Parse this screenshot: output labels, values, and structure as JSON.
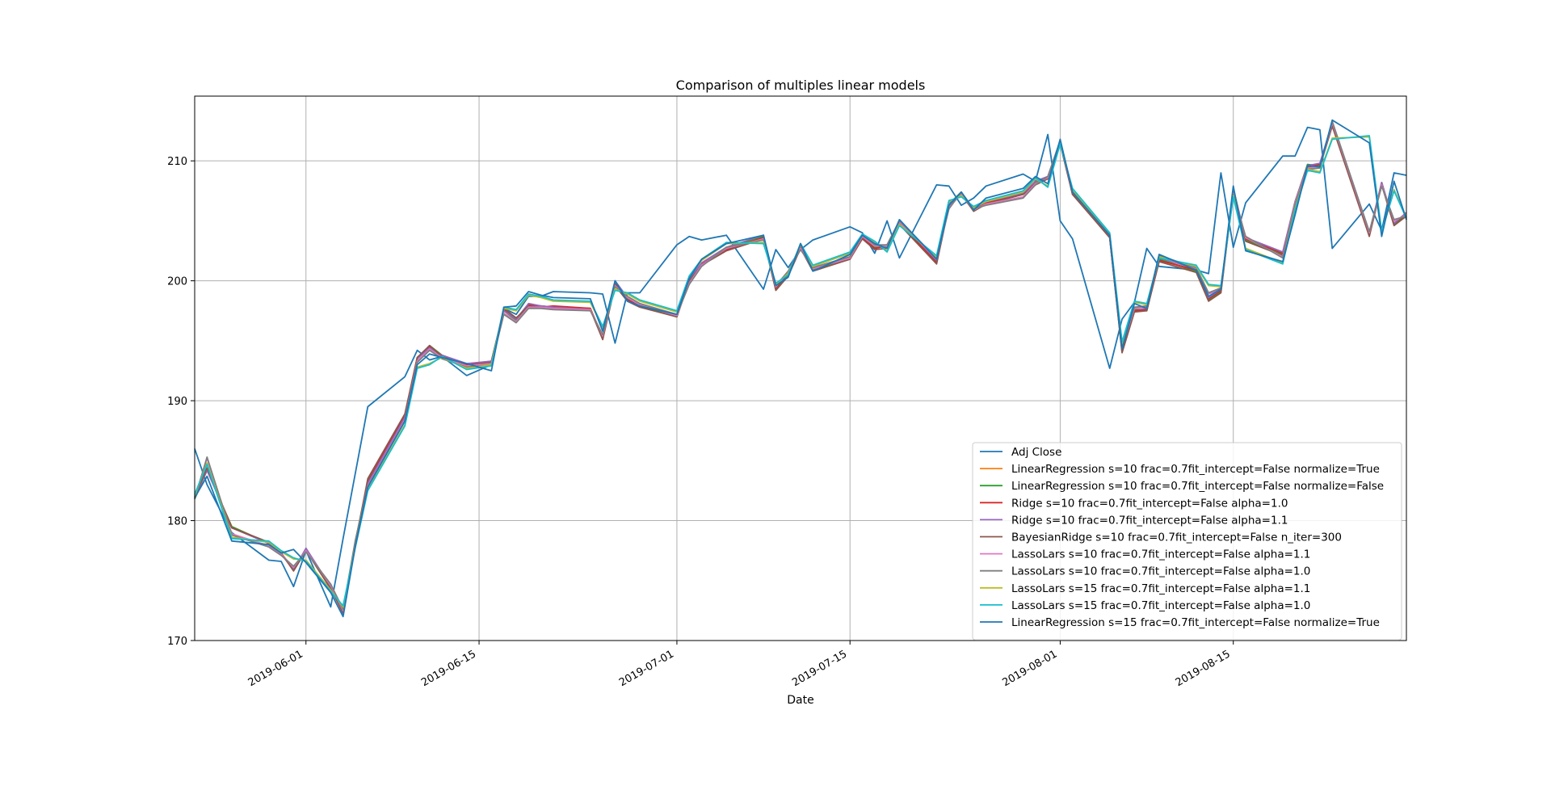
{
  "chart_data": {
    "type": "line",
    "title": "Comparison of multiples linear models",
    "xlabel": "Date",
    "ylabel": "",
    "x_scale": "date",
    "xlim": [
      "2019-05-23",
      "2019-08-29"
    ],
    "ylim": [
      170,
      215.4
    ],
    "xticks": [
      "2019-06-01",
      "2019-06-15",
      "2019-07-01",
      "2019-07-15",
      "2019-08-01",
      "2019-08-15"
    ],
    "yticks": [
      170,
      180,
      190,
      200,
      210
    ],
    "grid": true,
    "legend_position": "lower right",
    "x": [
      "2019-05-23",
      "2019-05-24",
      "2019-05-26",
      "2019-05-29",
      "2019-05-30",
      "2019-05-31",
      "2019-06-01",
      "2019-06-03",
      "2019-06-04",
      "2019-06-05",
      "2019-06-06",
      "2019-06-09",
      "2019-06-10",
      "2019-06-11",
      "2019-06-12",
      "2019-06-14",
      "2019-06-16",
      "2019-06-17",
      "2019-06-18",
      "2019-06-19",
      "2019-06-20",
      "2019-06-21",
      "2019-06-24",
      "2019-06-25",
      "2019-06-26",
      "2019-06-27",
      "2019-06-28",
      "2019-07-01",
      "2019-07-02",
      "2019-07-03",
      "2019-07-05",
      "2019-07-08",
      "2019-07-09",
      "2019-07-10",
      "2019-07-11",
      "2019-07-12",
      "2019-07-15",
      "2019-07-16",
      "2019-07-17",
      "2019-07-18",
      "2019-07-19",
      "2019-07-22",
      "2019-07-23",
      "2019-07-24",
      "2019-07-25",
      "2019-07-26",
      "2019-07-29",
      "2019-07-30",
      "2019-07-31",
      "2019-08-01",
      "2019-08-02",
      "2019-08-05",
      "2019-08-06",
      "2019-08-07",
      "2019-08-08",
      "2019-08-09",
      "2019-08-12",
      "2019-08-13",
      "2019-08-14",
      "2019-08-15",
      "2019-08-16",
      "2019-08-19",
      "2019-08-20",
      "2019-08-21",
      "2019-08-22",
      "2019-08-23",
      "2019-08-26",
      "2019-08-27",
      "2019-08-28",
      "2019-08-29"
    ],
    "series": [
      {
        "name": "Adj Close",
        "color": "#1f77b4",
        "values": [
          186,
          183,
          179,
          176.7,
          176.6,
          174.5,
          177.5,
          172.8,
          178.5,
          184,
          189.5,
          192,
          194.2,
          193.4,
          193.7,
          192.1,
          193,
          197.7,
          197.2,
          198.7,
          198.7,
          199.1,
          199,
          198.9,
          194.8,
          199,
          199,
          203,
          203.7,
          203.4,
          203.8,
          199.3,
          202.6,
          201.1,
          202.6,
          203.4,
          204.5,
          204,
          202.3,
          205,
          201.9,
          208,
          207.9,
          206.3,
          206.9,
          207.9,
          208.9,
          208.3,
          212.2,
          205,
          203.5,
          192.7,
          196.8,
          198.2,
          202.7,
          201.2,
          200.9,
          200.6,
          209,
          202.8,
          206.5,
          210.4,
          210.4,
          212.8,
          212.6,
          202.7,
          206.4,
          204.2,
          209,
          208.8
        ]
      },
      {
        "name": "LinearRegression s=10 frac=0.7fit_intercept=False normalize=True",
        "color": "#ff7f0e",
        "values": [
          181.8,
          184.2,
          179.5,
          178.1,
          177.2,
          176,
          177.6,
          174.5,
          172.3,
          178.3,
          183.3,
          188.7,
          193.5,
          194.6,
          193.8,
          193,
          193.3,
          197.5,
          196.7,
          198,
          197.9,
          197.8,
          197.7,
          195.2,
          199.8,
          198.5,
          197.9,
          197,
          200,
          201.3,
          202.7,
          203.7,
          199.3,
          200.5,
          202.9,
          200.9,
          201.8,
          203.7,
          202.8,
          202.8,
          204.9,
          201.5,
          206.4,
          207.4,
          205.8,
          206.4,
          207.4,
          208.2,
          208.5,
          211.6,
          207.2,
          203.7,
          194.1,
          197.6,
          197.5,
          201.8,
          200.8,
          198.4,
          199.1,
          207.7,
          203.4,
          202.2,
          206.6,
          209.7,
          209.6,
          213.1,
          203.8,
          208.2,
          204.7,
          205.5
        ]
      },
      {
        "name": "LinearRegression s=10 frac=0.7fit_intercept=False normalize=False",
        "color": "#2ca02c",
        "values": [
          181.8,
          184.2,
          179.5,
          178.1,
          177.2,
          176,
          177.6,
          174.5,
          172.3,
          178.3,
          183.3,
          188.7,
          193.5,
          194.6,
          193.8,
          193,
          193.3,
          197.5,
          196.7,
          198,
          197.9,
          197.8,
          197.7,
          195.2,
          199.8,
          198.5,
          197.9,
          197,
          200,
          201.3,
          202.7,
          203.7,
          199.3,
          200.5,
          202.9,
          200.9,
          201.8,
          203.7,
          202.8,
          202.8,
          204.9,
          201.5,
          206.4,
          207.4,
          205.8,
          206.4,
          207.4,
          208.2,
          208.5,
          211.6,
          207.2,
          203.7,
          194.1,
          197.6,
          197.5,
          201.8,
          200.8,
          198.4,
          199.1,
          207.7,
          203.4,
          202.2,
          206.6,
          209.7,
          209.6,
          213.1,
          203.8,
          208.2,
          204.7,
          205.5
        ]
      },
      {
        "name": "Ridge s=10 frac=0.7fit_intercept=False alpha=1.0",
        "color": "#d62728",
        "values": [
          181.9,
          184.3,
          179.4,
          178.1,
          177.3,
          175.9,
          177.6,
          174.4,
          172.3,
          178.2,
          183.2,
          188.8,
          193.6,
          194.5,
          193.7,
          193,
          193.2,
          197.6,
          196.8,
          198,
          197.8,
          197.9,
          197.7,
          195.3,
          199.7,
          198.4,
          198,
          197.1,
          200.1,
          201.4,
          202.6,
          203.6,
          199.4,
          200.6,
          202.8,
          201,
          201.9,
          203.6,
          202.7,
          202.9,
          204.8,
          201.6,
          206.3,
          207.3,
          205.9,
          206.5,
          207.3,
          208.1,
          208.6,
          211.5,
          207.3,
          203.6,
          194.2,
          197.5,
          197.6,
          201.7,
          200.9,
          198.5,
          199.2,
          207.6,
          203.5,
          202.3,
          206.5,
          209.6,
          209.7,
          213,
          203.9,
          208.1,
          204.8,
          205.6
        ]
      },
      {
        "name": "Ridge s=10 frac=0.7fit_intercept=False alpha=1.1",
        "color": "#9467bd",
        "values": [
          181.9,
          184.2,
          179.4,
          178.1,
          177.2,
          175.9,
          177.7,
          174.5,
          172.2,
          178.3,
          183.1,
          188.6,
          193.5,
          194.4,
          193.8,
          193.1,
          193.3,
          197.5,
          196.8,
          198.1,
          197.9,
          197.8,
          197.6,
          195.3,
          200,
          198.6,
          198,
          197.2,
          200.1,
          201.5,
          202.8,
          203.8,
          199.5,
          200.7,
          203,
          201.1,
          202,
          203.7,
          202.9,
          203,
          205,
          201.7,
          206.4,
          207.3,
          206,
          206.6,
          207.3,
          208.3,
          208.7,
          211.5,
          207.4,
          203.8,
          194.3,
          197.7,
          197.7,
          201.9,
          201,
          198.6,
          199.3,
          207.5,
          203.6,
          202.4,
          206.6,
          209.6,
          209.8,
          213.2,
          204,
          208.2,
          204.8,
          205.7
        ]
      },
      {
        "name": "BayesianRidge s=10 frac=0.7fit_intercept=False n_iter=300",
        "color": "#8c564b",
        "values": [
          182,
          184.4,
          179.4,
          178.2,
          177.3,
          175.8,
          177.5,
          174.3,
          172.3,
          178.1,
          183.5,
          188.9,
          193.6,
          194.6,
          193.7,
          192.9,
          193.2,
          197.7,
          196.9,
          197.9,
          197.8,
          197.7,
          197.6,
          195.1,
          199.6,
          198.3,
          197.8,
          197,
          200,
          201.3,
          202.5,
          203.5,
          199.2,
          200.4,
          202.7,
          200.8,
          201.8,
          203.5,
          202.6,
          202.7,
          204.7,
          201.4,
          206.2,
          207.2,
          205.8,
          206.4,
          207.2,
          208,
          208.5,
          211.4,
          207.2,
          203.6,
          194,
          197.4,
          197.5,
          201.6,
          200.7,
          198.3,
          199,
          207.4,
          203.3,
          202.1,
          206.4,
          209.5,
          209.5,
          212.9,
          203.7,
          208,
          204.6,
          205.4
        ]
      },
      {
        "name": "LassoLars s=10 frac=0.7fit_intercept=False alpha=1.1",
        "color": "#e377c2",
        "values": [
          181.9,
          185.2,
          178.9,
          177.9,
          177.2,
          176.1,
          177.5,
          174.6,
          172.5,
          178.3,
          182.9,
          188.4,
          193.3,
          194.3,
          193.6,
          192.9,
          193.1,
          197.3,
          196.6,
          197.8,
          197.8,
          197.7,
          197.6,
          195.4,
          199.6,
          198.6,
          198,
          197.1,
          199.8,
          201.3,
          202.7,
          203.5,
          199.5,
          200.7,
          202.7,
          201,
          201.9,
          203.7,
          202.9,
          202.9,
          204.9,
          201.8,
          206.1,
          207.3,
          205.9,
          206.4,
          207,
          208.1,
          208.6,
          211.6,
          207.4,
          203.8,
          194.5,
          197.7,
          197.8,
          202,
          201,
          198.9,
          199.3,
          207.3,
          203.6,
          202,
          206.5,
          209.4,
          209.5,
          213.2,
          204,
          208,
          205,
          205.5
        ]
      },
      {
        "name": "LassoLars s=10 frac=0.7fit_intercept=False alpha=1.0",
        "color": "#7f7f7f",
        "values": [
          181.8,
          185.3,
          178.8,
          177.8,
          177.1,
          176.2,
          177.4,
          174.7,
          172.6,
          178.4,
          182.8,
          188.3,
          193.2,
          194.2,
          193.5,
          192.8,
          193,
          197.2,
          196.5,
          197.7,
          197.7,
          197.6,
          197.5,
          195.5,
          199.5,
          198.7,
          198.1,
          197.2,
          199.7,
          201.2,
          202.8,
          203.4,
          199.6,
          200.8,
          202.6,
          201.1,
          202,
          203.8,
          203,
          203,
          205,
          201.9,
          206,
          207.4,
          206,
          206.3,
          206.9,
          208,
          208.7,
          211.7,
          207.5,
          203.9,
          194.6,
          197.8,
          197.9,
          202.1,
          201.1,
          199,
          199.4,
          207.2,
          203.7,
          201.9,
          206.4,
          209.3,
          209.4,
          213.3,
          204.1,
          207.9,
          205.1,
          205.4
        ]
      },
      {
        "name": "LassoLars s=15 frac=0.7fit_intercept=False alpha=1.1",
        "color": "#bcbd22",
        "values": [
          182.1,
          184.8,
          178.6,
          178.2,
          177.4,
          176.8,
          176.7,
          174.2,
          172.8,
          177.9,
          182.6,
          188,
          192.8,
          193.1,
          193.6,
          192.7,
          193,
          197.7,
          197.5,
          198.8,
          198.6,
          198.3,
          198.2,
          196.1,
          199.3,
          198.9,
          198.3,
          197.4,
          200.3,
          201.7,
          203.1,
          203.2,
          199.7,
          200.6,
          203,
          201.2,
          202.3,
          203.8,
          203.2,
          202.5,
          204.7,
          202,
          206.6,
          207.1,
          206.1,
          206.6,
          207.4,
          208.5,
          207.9,
          211.5,
          207.6,
          203.9,
          194.8,
          198.2,
          198,
          202,
          201.2,
          199.6,
          199.5,
          207.1,
          202.7,
          201.5,
          206,
          209.3,
          209.1,
          211.9,
          212,
          204,
          207.6,
          205.3
        ]
      },
      {
        "name": "LassoLars s=15 frac=0.7fit_intercept=False alpha=1.0",
        "color": "#17becf",
        "values": [
          182.2,
          184.7,
          178.5,
          178.3,
          177.5,
          176.9,
          176.6,
          174.1,
          172.9,
          177.8,
          182.5,
          187.9,
          192.7,
          193,
          193.7,
          192.6,
          192.9,
          197.8,
          197.6,
          198.9,
          198.7,
          198.4,
          198.3,
          196.2,
          199.2,
          199,
          198.4,
          197.5,
          200.4,
          201.8,
          203.2,
          203.1,
          199.8,
          200.5,
          203.1,
          201.3,
          202.4,
          203.9,
          203.3,
          202.4,
          204.6,
          202.1,
          206.7,
          207,
          206.2,
          206.7,
          207.5,
          208.6,
          207.8,
          211.4,
          207.7,
          204,
          194.9,
          198.3,
          198.1,
          201.9,
          201.3,
          199.7,
          199.6,
          207,
          202.6,
          201.4,
          205.9,
          209.2,
          209,
          211.8,
          212.1,
          204.1,
          207.5,
          205.2
        ]
      },
      {
        "name": "LinearRegression s=15 frac=0.7fit_intercept=False normalize=True",
        "color": "#1f77b4",
        "values": [
          181.9,
          183.7,
          178.3,
          178,
          177.3,
          177.6,
          176.5,
          174,
          172,
          177.9,
          182.8,
          188.3,
          193,
          193.9,
          193.6,
          193.1,
          192.5,
          197.8,
          197.9,
          199.1,
          198.8,
          198.6,
          198.5,
          195.8,
          200,
          198.3,
          197.9,
          197.2,
          200.2,
          201.8,
          203.1,
          203.8,
          199.6,
          200.3,
          203.1,
          200.8,
          202.2,
          203.8,
          203.1,
          202.7,
          205.1,
          201.8,
          206.3,
          207.4,
          205.9,
          206.9,
          207.7,
          208.7,
          208.1,
          211.8,
          207.4,
          203.8,
          194.3,
          198.1,
          197.7,
          202.2,
          200.9,
          198.7,
          199.3,
          207.9,
          202.5,
          201.6,
          205.5,
          209.6,
          209.5,
          213.4,
          211.5,
          203.7,
          208.3,
          205.1
        ]
      }
    ]
  }
}
